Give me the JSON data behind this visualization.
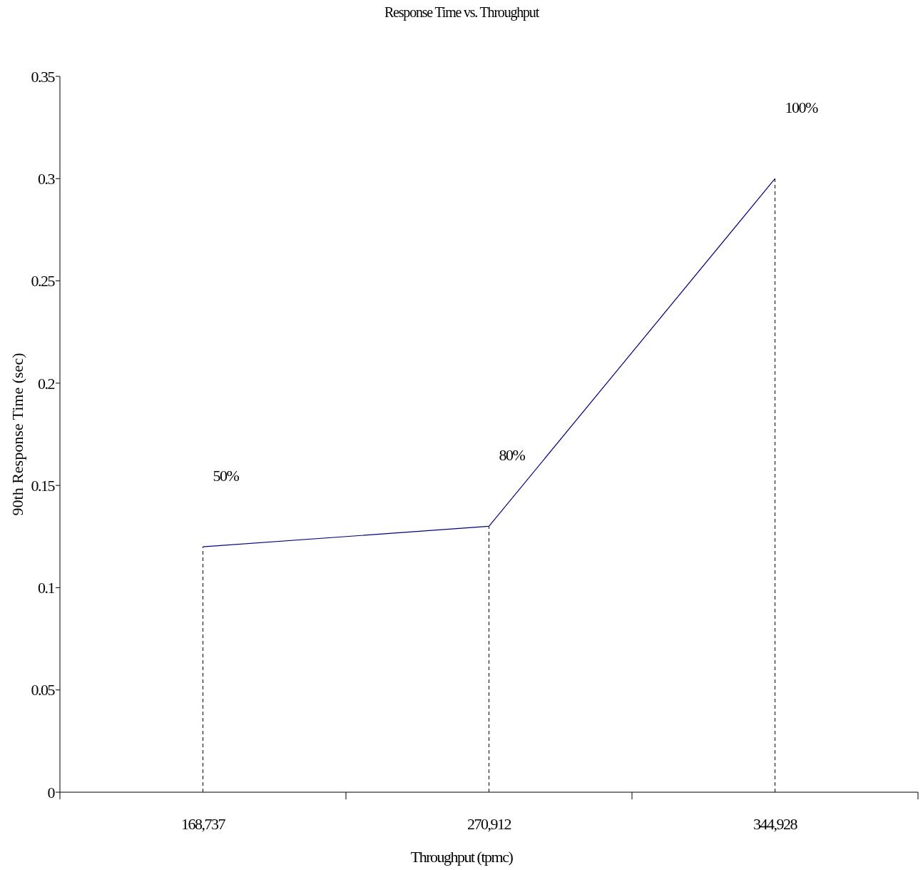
{
  "chart_data": {
    "type": "line",
    "title": "Response Time vs. Throughput",
    "xlabel": "Throughput (tpmc)",
    "ylabel": "90th Response Time (sec)",
    "categories": [
      "168,737",
      "270,912",
      "344,928"
    ],
    "series": [
      {
        "color": "#000080",
        "values": [
          0.12,
          0.13,
          0.3
        ]
      }
    ],
    "ylim": [
      0,
      0.35
    ],
    "yticks": [
      0,
      0.05,
      0.1,
      0.15,
      0.2,
      0.25,
      0.3,
      0.35
    ],
    "grid": false,
    "marker": "none",
    "line_style": "solid",
    "ref_lines": [
      {
        "axis": "x",
        "value": "168,737",
        "color": "#000000",
        "line_style": "dashed"
      },
      {
        "axis": "x",
        "value": "270,912",
        "color": "#000000",
        "line_style": "dashed"
      },
      {
        "axis": "x",
        "value": "344,928",
        "color": "#000000",
        "line_style": "dashed"
      }
    ],
    "annotations": [
      "50%",
      "80%",
      "100%"
    ]
  }
}
